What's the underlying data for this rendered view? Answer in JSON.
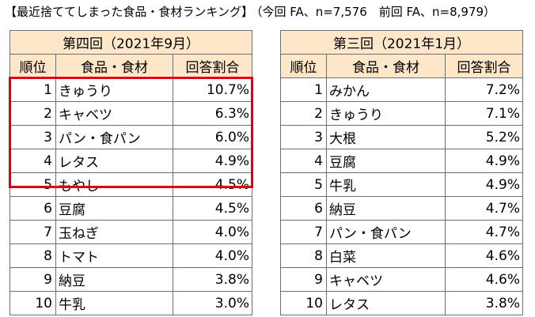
{
  "title": {
    "main": "【最近捨ててしまった食品・食材ランキング】",
    "sub": "（今回 FA、n=7,576　前回 FA、n=8,979）"
  },
  "tables": [
    {
      "caption": "第四回（2021年9月）",
      "headers": [
        "順位",
        "食品・食材",
        "回答割合"
      ],
      "rows": [
        {
          "rank": "1",
          "item": "きゅうり",
          "pct": "10.7%"
        },
        {
          "rank": "2",
          "item": "キャベツ",
          "pct": "6.3%"
        },
        {
          "rank": "3",
          "item": "パン・食パン",
          "pct": "6.0%"
        },
        {
          "rank": "4",
          "item": "レタス",
          "pct": "4.9%"
        },
        {
          "rank": "5",
          "item": "もやし",
          "pct": "4.5%"
        },
        {
          "rank": "6",
          "item": "豆腐",
          "pct": "4.5%"
        },
        {
          "rank": "7",
          "item": "玉ねぎ",
          "pct": "4.0%"
        },
        {
          "rank": "8",
          "item": "トマト",
          "pct": "4.0%"
        },
        {
          "rank": "9",
          "item": "納豆",
          "pct": "3.8%"
        },
        {
          "rank": "10",
          "item": "牛乳",
          "pct": "3.0%"
        }
      ]
    },
    {
      "caption": "第三回（2021年1月）",
      "headers": [
        "順位",
        "食品・食材",
        "回答割合"
      ],
      "rows": [
        {
          "rank": "1",
          "item": "みかん",
          "pct": "7.2%"
        },
        {
          "rank": "2",
          "item": "きゅうり",
          "pct": "7.1%"
        },
        {
          "rank": "3",
          "item": "大根",
          "pct": "5.2%"
        },
        {
          "rank": "4",
          "item": "豆腐",
          "pct": "4.9%"
        },
        {
          "rank": "5",
          "item": "牛乳",
          "pct": "4.9%"
        },
        {
          "rank": "6",
          "item": "納豆",
          "pct": "4.7%"
        },
        {
          "rank": "7",
          "item": "パン・食パン",
          "pct": "4.7%"
        },
        {
          "rank": "8",
          "item": "白菜",
          "pct": "4.6%"
        },
        {
          "rank": "9",
          "item": "キャベツ",
          "pct": "4.6%"
        },
        {
          "rank": "10",
          "item": "レタス",
          "pct": "3.8%"
        }
      ]
    }
  ],
  "colors": {
    "header_bg": "#fde7c8",
    "border": "#6f6f6f",
    "highlight": "#e00012"
  }
}
